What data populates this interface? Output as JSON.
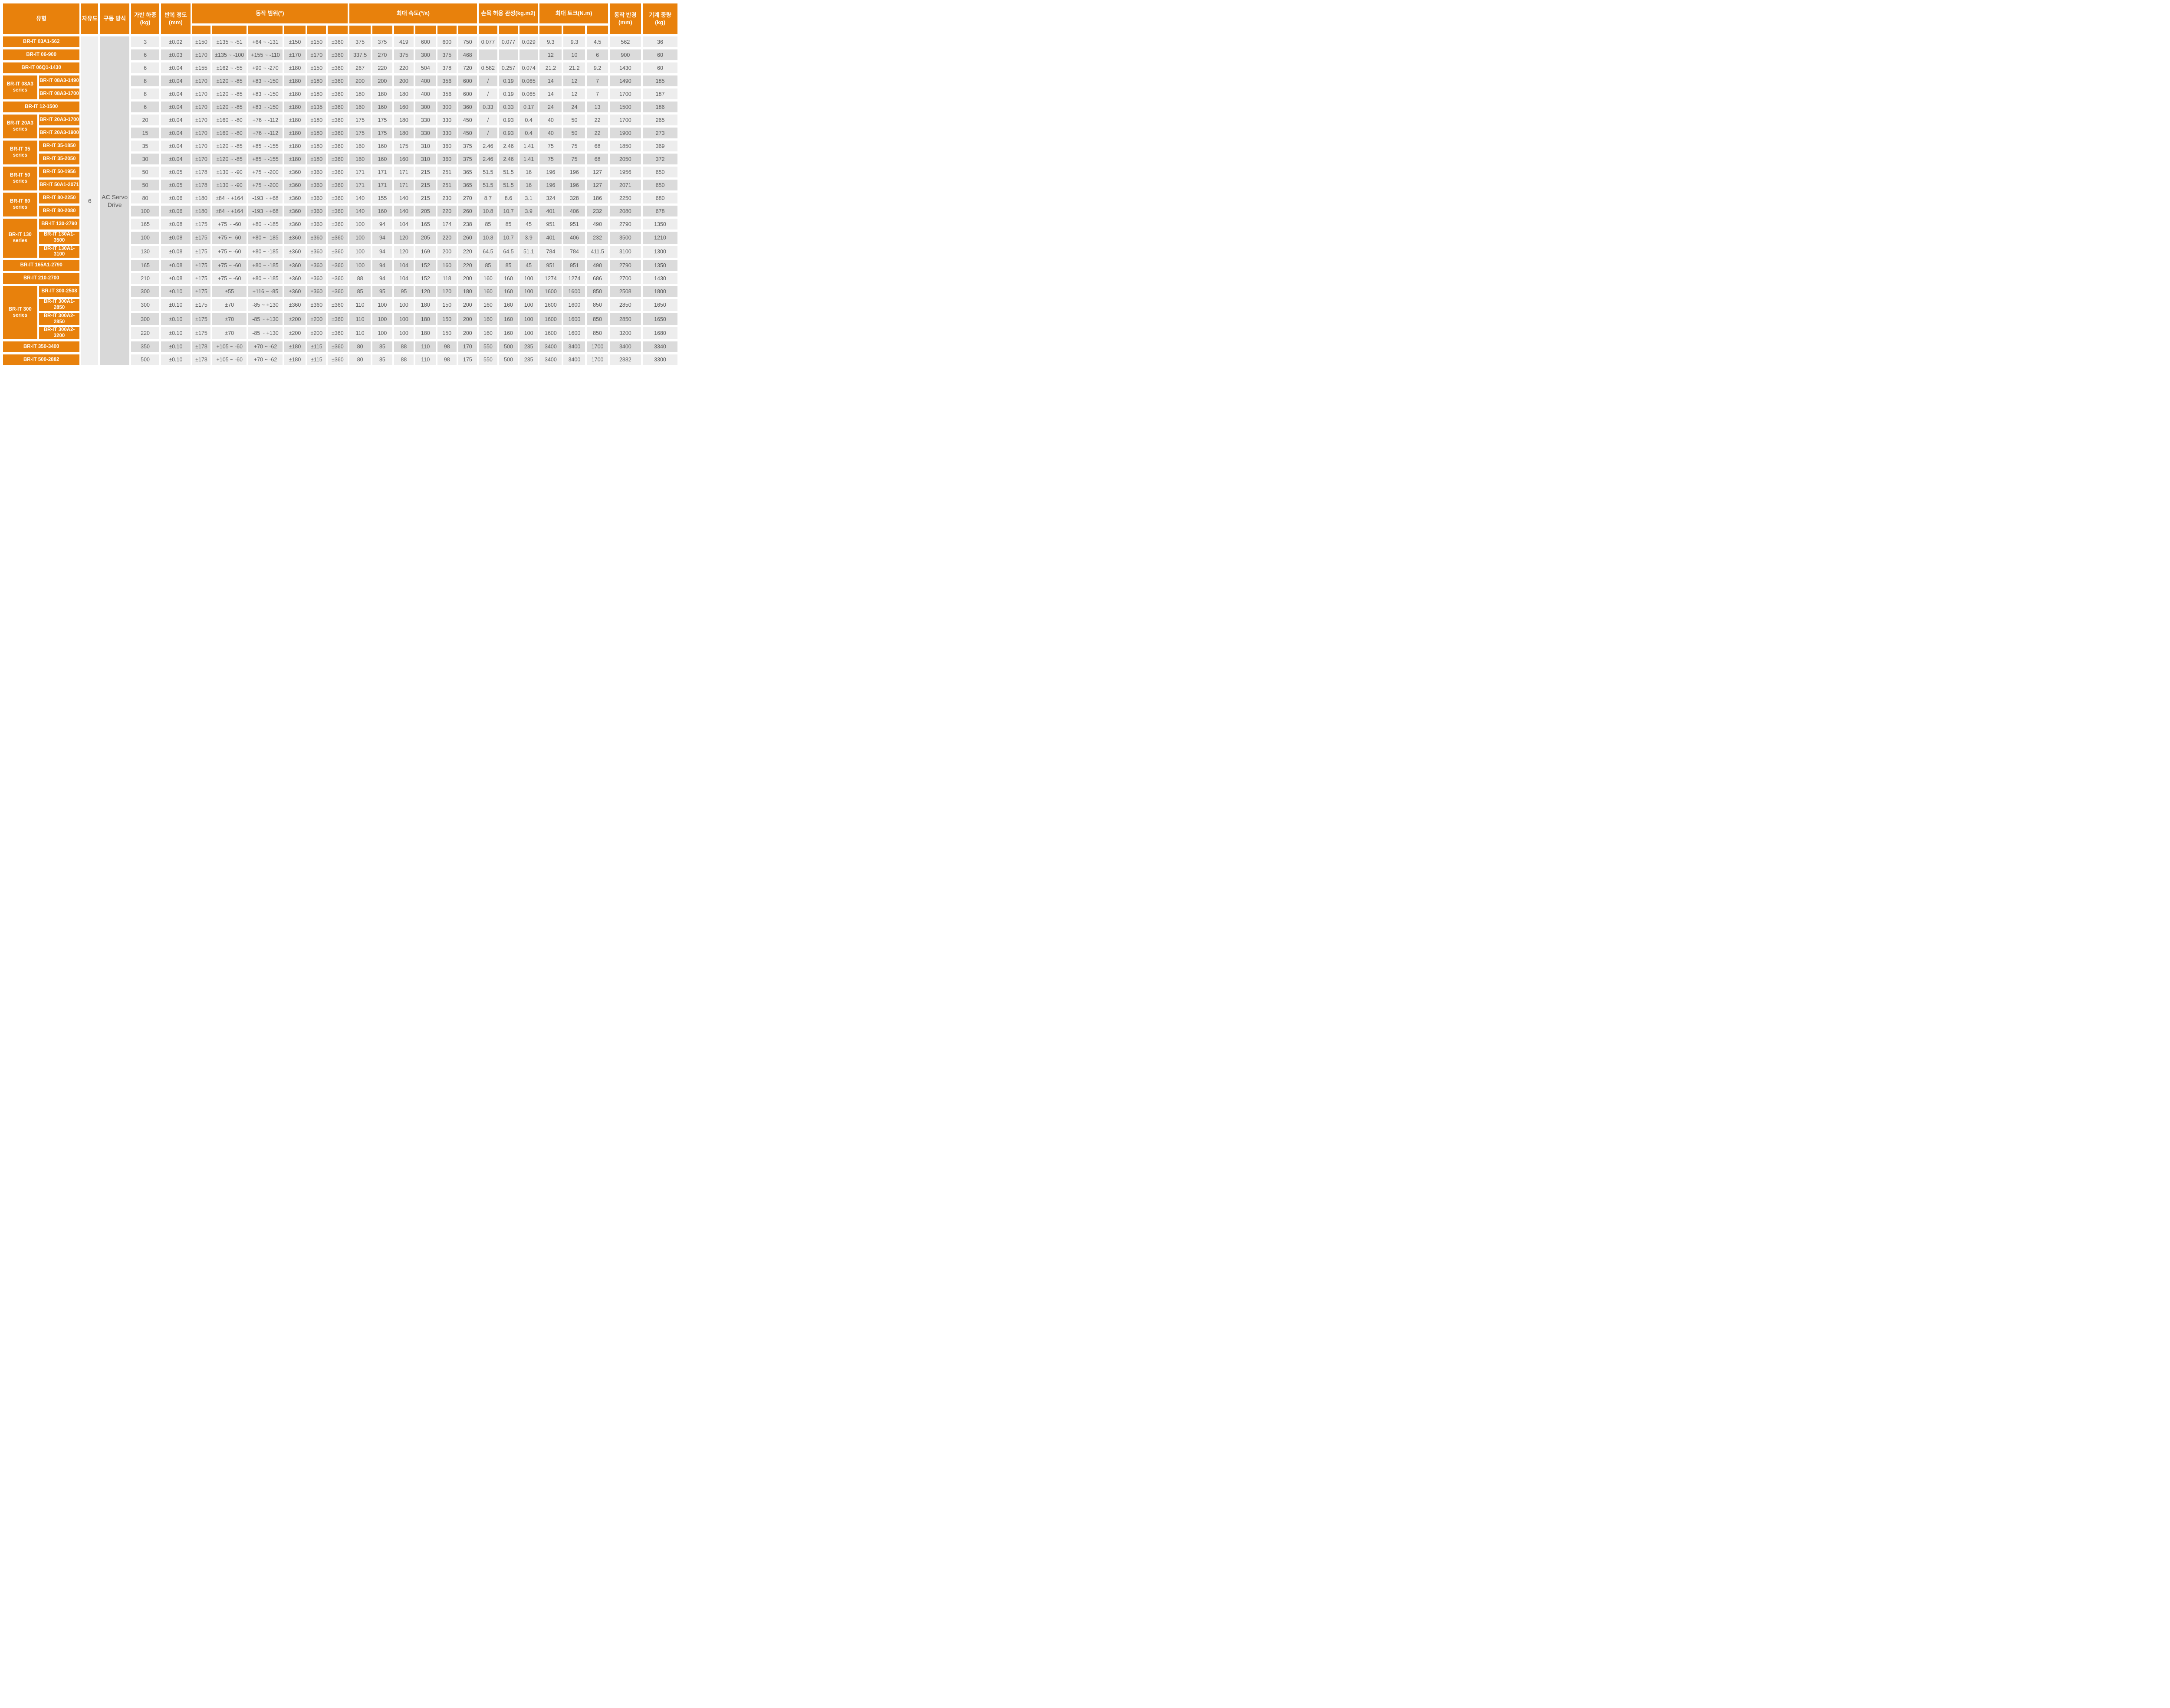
{
  "header": {
    "type": "유형",
    "dof": "자유도",
    "drive": "구동 방식",
    "payload": "가반 하중\n(kg)",
    "repeat": "반복 정도\n(mm)",
    "range": "동작 범위(°)",
    "speed": "최대 속도(°/s)",
    "inertia": "손목 허용 관성(kg.m2)",
    "torque": "최대 토크(N.m)",
    "radius": "동작 반경\n(mm)",
    "weight": "기계 중량\n(kg)",
    "range_subcols": 6,
    "speed_subcols": 6,
    "inertia_subcols": 3,
    "torque_subcols": 3
  },
  "shared": {
    "dof_value": "6",
    "drive_value": "AC Servo Drive"
  },
  "colors": {
    "accent_orange": "#E8810C",
    "row_light": "#EDEDED",
    "row_dark": "#DBDBDB",
    "dof_column_bg": "#EFEFEF",
    "drive_column_bg": "#D8D8D8",
    "data_text": "#575757",
    "header_text": "#FFFFFF"
  },
  "rows": [
    {
      "model": "BR-IT 03A1-562",
      "full": true,
      "payload": "3",
      "repeat": "±0.02",
      "range": [
        "±150",
        "±135 ~ -51",
        "+64 ~ -131",
        "±150",
        "±150",
        "±360"
      ],
      "speed": [
        "375",
        "375",
        "419",
        "600",
        "600",
        "750"
      ],
      "inertia": [
        "0.077",
        "0.077",
        "0.029"
      ],
      "torque": [
        "9.3",
        "9.3",
        "4.5"
      ],
      "radius": "562",
      "weight": "36"
    },
    {
      "model": "BR-IT 06-900",
      "full": true,
      "payload": "6",
      "repeat": "±0.03",
      "range": [
        "±170",
        "±135 ~ -100",
        "+155 ~ -110",
        "±170",
        "±170",
        "±360"
      ],
      "speed": [
        "337.5",
        "270",
        "375",
        "300",
        "375",
        "468"
      ],
      "inertia": [
        "",
        "",
        ""
      ],
      "torque": [
        "12",
        "10",
        "6"
      ],
      "radius": "900",
      "weight": "60"
    },
    {
      "model": "BR-IT 06Q1-1430",
      "full": true,
      "payload": "6",
      "repeat": "±0.04",
      "range": [
        "±155",
        "±162 ~ -55",
        "+90 ~ -270",
        "±180",
        "±150",
        "±360"
      ],
      "speed": [
        "267",
        "220",
        "220",
        "504",
        "378",
        "720"
      ],
      "inertia": [
        "0.582",
        "0.257",
        "0.074"
      ],
      "torque": [
        "21.2",
        "21.2",
        "9.2"
      ],
      "radius": "1430",
      "weight": "60"
    },
    {
      "series": "BR-IT 08A3 series",
      "series_rows": 2,
      "model": "BR-IT 08A3-1490",
      "payload": "8",
      "repeat": "±0.04",
      "range": [
        "±170",
        "±120 ~ -85",
        "+83 ~ -150",
        "±180",
        "±180",
        "±360"
      ],
      "speed": [
        "200",
        "200",
        "200",
        "400",
        "356",
        "600"
      ],
      "inertia": [
        "/",
        "0.19",
        "0.065"
      ],
      "torque": [
        "14",
        "12",
        "7"
      ],
      "radius": "1490",
      "weight": "185"
    },
    {
      "model": "BR-IT 08A3-1700",
      "payload": "8",
      "repeat": "±0.04",
      "range": [
        "±170",
        "±120 ~ -85",
        "+83 ~ -150",
        "±180",
        "±180",
        "±360"
      ],
      "speed": [
        "180",
        "180",
        "180",
        "400",
        "356",
        "600"
      ],
      "inertia": [
        "/",
        "0.19",
        "0.065"
      ],
      "torque": [
        "14",
        "12",
        "7"
      ],
      "radius": "1700",
      "weight": "187"
    },
    {
      "model": "BR-IT 12-1500",
      "full": true,
      "payload": "6",
      "repeat": "±0.04",
      "range": [
        "±170",
        "±120 ~ -85",
        "+83 ~ -150",
        "±180",
        "±135",
        "±360"
      ],
      "speed": [
        "160",
        "160",
        "160",
        "300",
        "300",
        "360"
      ],
      "inertia": [
        "0.33",
        "0.33",
        "0.17"
      ],
      "torque": [
        "24",
        "24",
        "13"
      ],
      "radius": "1500",
      "weight": "186"
    },
    {
      "series": "BR-IT 20A3 series",
      "series_rows": 2,
      "model": "BR-IT 20A3-1700",
      "payload": "20",
      "repeat": "±0.04",
      "range": [
        "±170",
        "±160 ~ -80",
        "+76 ~ -112",
        "±180",
        "±180",
        "±360"
      ],
      "speed": [
        "175",
        "175",
        "180",
        "330",
        "330",
        "450"
      ],
      "inertia": [
        "/",
        "0.93",
        "0.4"
      ],
      "torque": [
        "40",
        "50",
        "22"
      ],
      "radius": "1700",
      "weight": "265"
    },
    {
      "model": "BR-IT 20A3-1900",
      "payload": "15",
      "repeat": "±0.04",
      "range": [
        "±170",
        "±160 ~ -80",
        "+76 ~ -112",
        "±180",
        "±180",
        "±360"
      ],
      "speed": [
        "175",
        "175",
        "180",
        "330",
        "330",
        "450"
      ],
      "inertia": [
        "/",
        "0.93",
        "0.4"
      ],
      "torque": [
        "40",
        "50",
        "22"
      ],
      "radius": "1900",
      "weight": "273"
    },
    {
      "series": "BR-IT 35 series",
      "series_rows": 2,
      "model": "BR-IT 35-1850",
      "payload": "35",
      "repeat": "±0.04",
      "range": [
        "±170",
        "±120 ~ -85",
        "+85 ~ -155",
        "±180",
        "±180",
        "±360"
      ],
      "speed": [
        "160",
        "160",
        "175",
        "310",
        "360",
        "375"
      ],
      "inertia": [
        "2.46",
        "2.46",
        "1.41"
      ],
      "torque": [
        "75",
        "75",
        "68"
      ],
      "radius": "1850",
      "weight": "369"
    },
    {
      "model": "BR-IT 35-2050",
      "payload": "30",
      "repeat": "±0.04",
      "range": [
        "±170",
        "±120 ~ -85",
        "+85 ~ -155",
        "±180",
        "±180",
        "±360"
      ],
      "speed": [
        "160",
        "160",
        "160",
        "310",
        "360",
        "375"
      ],
      "inertia": [
        "2.46",
        "2.46",
        "1.41"
      ],
      "torque": [
        "75",
        "75",
        "68"
      ],
      "radius": "2050",
      "weight": "372"
    },
    {
      "series": "BR-IT 50 series",
      "series_rows": 2,
      "model": "BR-IT 50-1956",
      "payload": "50",
      "repeat": "±0.05",
      "range": [
        "±178",
        "±130 ~ -90",
        "+75 ~ -200",
        "±360",
        "±360",
        "±360"
      ],
      "speed": [
        "171",
        "171",
        "171",
        "215",
        "251",
        "365"
      ],
      "inertia": [
        "51.5",
        "51.5",
        "16"
      ],
      "torque": [
        "196",
        "196",
        "127"
      ],
      "radius": "1956",
      "weight": "650"
    },
    {
      "model": "BR-IT 50A1-2071",
      "payload": "50",
      "repeat": "±0.05",
      "range": [
        "±178",
        "±130 ~ -90",
        "+75 ~ -200",
        "±360",
        "±360",
        "±360"
      ],
      "speed": [
        "171",
        "171",
        "171",
        "215",
        "251",
        "365"
      ],
      "inertia": [
        "51.5",
        "51.5",
        "16"
      ],
      "torque": [
        "196",
        "196",
        "127"
      ],
      "radius": "2071",
      "weight": "650"
    },
    {
      "series": "BR-IT 80 series",
      "series_rows": 2,
      "model": "BR-IT 80-2250",
      "payload": "80",
      "repeat": "±0.06",
      "range": [
        "±180",
        "±84 ~ +164",
        "-193 ~ +68",
        "±360",
        "±360",
        "±360"
      ],
      "speed": [
        "140",
        "155",
        "140",
        "215",
        "230",
        "270"
      ],
      "inertia": [
        "8.7",
        "8.6",
        "3.1"
      ],
      "torque": [
        "324",
        "328",
        "186"
      ],
      "radius": "2250",
      "weight": "680"
    },
    {
      "model": "BR-IT 80-2080",
      "payload": "100",
      "repeat": "±0.06",
      "range": [
        "±180",
        "±84 ~ +164",
        "-193 ~ +68",
        "±360",
        "±360",
        "±360"
      ],
      "speed": [
        "140",
        "160",
        "140",
        "205",
        "220",
        "260"
      ],
      "inertia": [
        "10.8",
        "10.7",
        "3.9"
      ],
      "torque": [
        "401",
        "406",
        "232"
      ],
      "radius": "2080",
      "weight": "678"
    },
    {
      "series": "BR-IT 130 series",
      "series_rows": 3,
      "model": "BR-IT 130-2790",
      "payload": "165",
      "repeat": "±0.08",
      "range": [
        "±175",
        "+75 ~ -60",
        "+80 ~ -185",
        "±360",
        "±360",
        "±360"
      ],
      "speed": [
        "100",
        "94",
        "104",
        "165",
        "174",
        "238"
      ],
      "inertia": [
        "85",
        "85",
        "45"
      ],
      "torque": [
        "951",
        "951",
        "490"
      ],
      "radius": "2790",
      "weight": "1350"
    },
    {
      "model": "BR-IT 130A1-3500",
      "payload": "100",
      "repeat": "±0.08",
      "range": [
        "±175",
        "+75 ~ -60",
        "+80 ~ -185",
        "±360",
        "±360",
        "±360"
      ],
      "speed": [
        "100",
        "94",
        "120",
        "205",
        "220",
        "260"
      ],
      "inertia": [
        "10.8",
        "10.7",
        "3.9"
      ],
      "torque": [
        "401",
        "406",
        "232"
      ],
      "radius": "3500",
      "weight": "1210"
    },
    {
      "model": "BR-IT 130A1-3100",
      "payload": "130",
      "repeat": "±0.08",
      "range": [
        "±175",
        "+75 ~ -60",
        "+80 ~ -185",
        "±360",
        "±360",
        "±360"
      ],
      "speed": [
        "100",
        "94",
        "120",
        "169",
        "200",
        "220"
      ],
      "inertia": [
        "64.5",
        "64.5",
        "51.1"
      ],
      "torque": [
        "784",
        "784",
        "411.5"
      ],
      "radius": "3100",
      "weight": "1300"
    },
    {
      "model": "BR-IT 165A1-2790",
      "full": true,
      "payload": "165",
      "repeat": "±0.08",
      "range": [
        "±175",
        "+75 ~ -60",
        "+80 ~ -185",
        "±360",
        "±360",
        "±360"
      ],
      "speed": [
        "100",
        "94",
        "104",
        "152",
        "160",
        "220"
      ],
      "inertia": [
        "85",
        "85",
        "45"
      ],
      "torque": [
        "951",
        "951",
        "490"
      ],
      "radius": "2790",
      "weight": "1350"
    },
    {
      "model": "BR-IT 210-2700",
      "full": true,
      "payload": "210",
      "repeat": "±0.08",
      "range": [
        "±175",
        "+75 ~ -60",
        "+80 ~ -185",
        "±360",
        "±360",
        "±360"
      ],
      "speed": [
        "88",
        "94",
        "104",
        "152",
        "118",
        "200"
      ],
      "inertia": [
        "160",
        "160",
        "100"
      ],
      "torque": [
        "1274",
        "1274",
        "686"
      ],
      "radius": "2700",
      "weight": "1430"
    },
    {
      "series": "BR-IT 300 series",
      "series_rows": 4,
      "model": "BR-IT 300-2508",
      "payload": "300",
      "repeat": "±0.10",
      "range": [
        "±175",
        "±55",
        "+116 ~ -85",
        "±360",
        "±360",
        "±360"
      ],
      "speed": [
        "85",
        "95",
        "95",
        "120",
        "120",
        "180"
      ],
      "inertia": [
        "160",
        "160",
        "100"
      ],
      "torque": [
        "1600",
        "1600",
        "850"
      ],
      "radius": "2508",
      "weight": "1800"
    },
    {
      "model": "BR-IT 300A1-2850",
      "payload": "300",
      "repeat": "±0.10",
      "range": [
        "±175",
        "±70",
        "-85 ~ +130",
        "±360",
        "±360",
        "±360"
      ],
      "speed": [
        "110",
        "100",
        "100",
        "180",
        "150",
        "200"
      ],
      "inertia": [
        "160",
        "160",
        "100"
      ],
      "torque": [
        "1600",
        "1600",
        "850"
      ],
      "radius": "2850",
      "weight": "1650"
    },
    {
      "model": "BR-IT 300A2-2850",
      "payload": "300",
      "repeat": "±0.10",
      "range": [
        "±175",
        "±70",
        "-85 ~ +130",
        "±200",
        "±200",
        "±360"
      ],
      "speed": [
        "110",
        "100",
        "100",
        "180",
        "150",
        "200"
      ],
      "inertia": [
        "160",
        "160",
        "100"
      ],
      "torque": [
        "1600",
        "1600",
        "850"
      ],
      "radius": "2850",
      "weight": "1650"
    },
    {
      "model": "BR-IT 300A2-3200",
      "payload": "220",
      "repeat": "±0.10",
      "range": [
        "±175",
        "±70",
        "-85 ~ +130",
        "±200",
        "±200",
        "±360"
      ],
      "speed": [
        "110",
        "100",
        "100",
        "180",
        "150",
        "200"
      ],
      "inertia": [
        "160",
        "160",
        "100"
      ],
      "torque": [
        "1600",
        "1600",
        "850"
      ],
      "radius": "3200",
      "weight": "1680"
    },
    {
      "model": "BR-IT 350-3400",
      "full": true,
      "payload": "350",
      "repeat": "±0.10",
      "range": [
        "±178",
        "+105 ~ -60",
        "+70 ~ -62",
        "±180",
        "±115",
        "±360"
      ],
      "speed": [
        "80",
        "85",
        "88",
        "110",
        "98",
        "170"
      ],
      "inertia": [
        "550",
        "500",
        "235"
      ],
      "torque": [
        "3400",
        "3400",
        "1700"
      ],
      "radius": "3400",
      "weight": "3340"
    },
    {
      "model": "BR-IT 500-2882",
      "full": true,
      "payload": "500",
      "repeat": "±0.10",
      "range": [
        "±178",
        "+105 ~ -60",
        "+70 ~ -62",
        "±180",
        "±115",
        "±360"
      ],
      "speed": [
        "80",
        "85",
        "88",
        "110",
        "98",
        "175"
      ],
      "inertia": [
        "550",
        "500",
        "235"
      ],
      "torque": [
        "3400",
        "3400",
        "1700"
      ],
      "radius": "2882",
      "weight": "3300"
    }
  ]
}
